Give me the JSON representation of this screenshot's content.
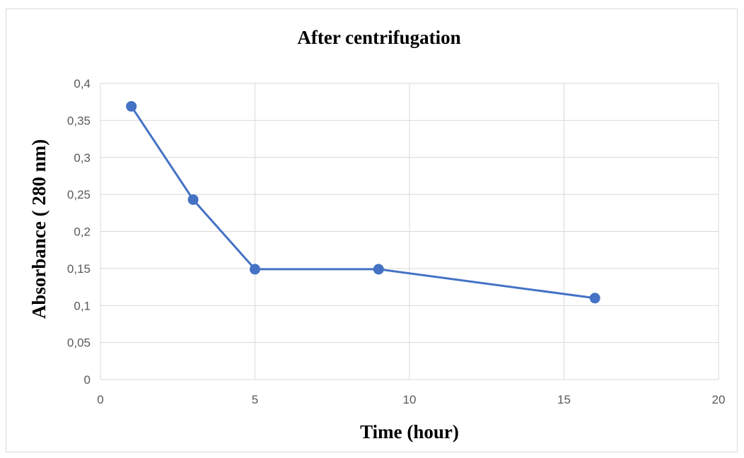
{
  "chart_data": {
    "type": "scatter",
    "title": "After centrifugation",
    "xlabel": "Time (hour)",
    "ylabel": "Absorbance ( 280 nm)",
    "xlim": [
      0,
      20
    ],
    "ylim": [
      0,
      0.4
    ],
    "x_ticks": [
      "0",
      "5",
      "10",
      "15",
      "20"
    ],
    "y_ticks": [
      "0",
      "0,05",
      "0,1",
      "0,15",
      "0,2",
      "0,25",
      "0,3",
      "0,35",
      "0,4"
    ],
    "grid": true,
    "legend": "none",
    "series": [
      {
        "color": "#4472c4",
        "lines": true,
        "markers": true,
        "points": [
          {
            "x": 1,
            "y": 0.369
          },
          {
            "x": 3,
            "y": 0.243
          },
          {
            "x": 5,
            "y": 0.149
          },
          {
            "x": 9,
            "y": 0.149
          },
          {
            "x": 16,
            "y": 0.11
          }
        ]
      }
    ]
  }
}
